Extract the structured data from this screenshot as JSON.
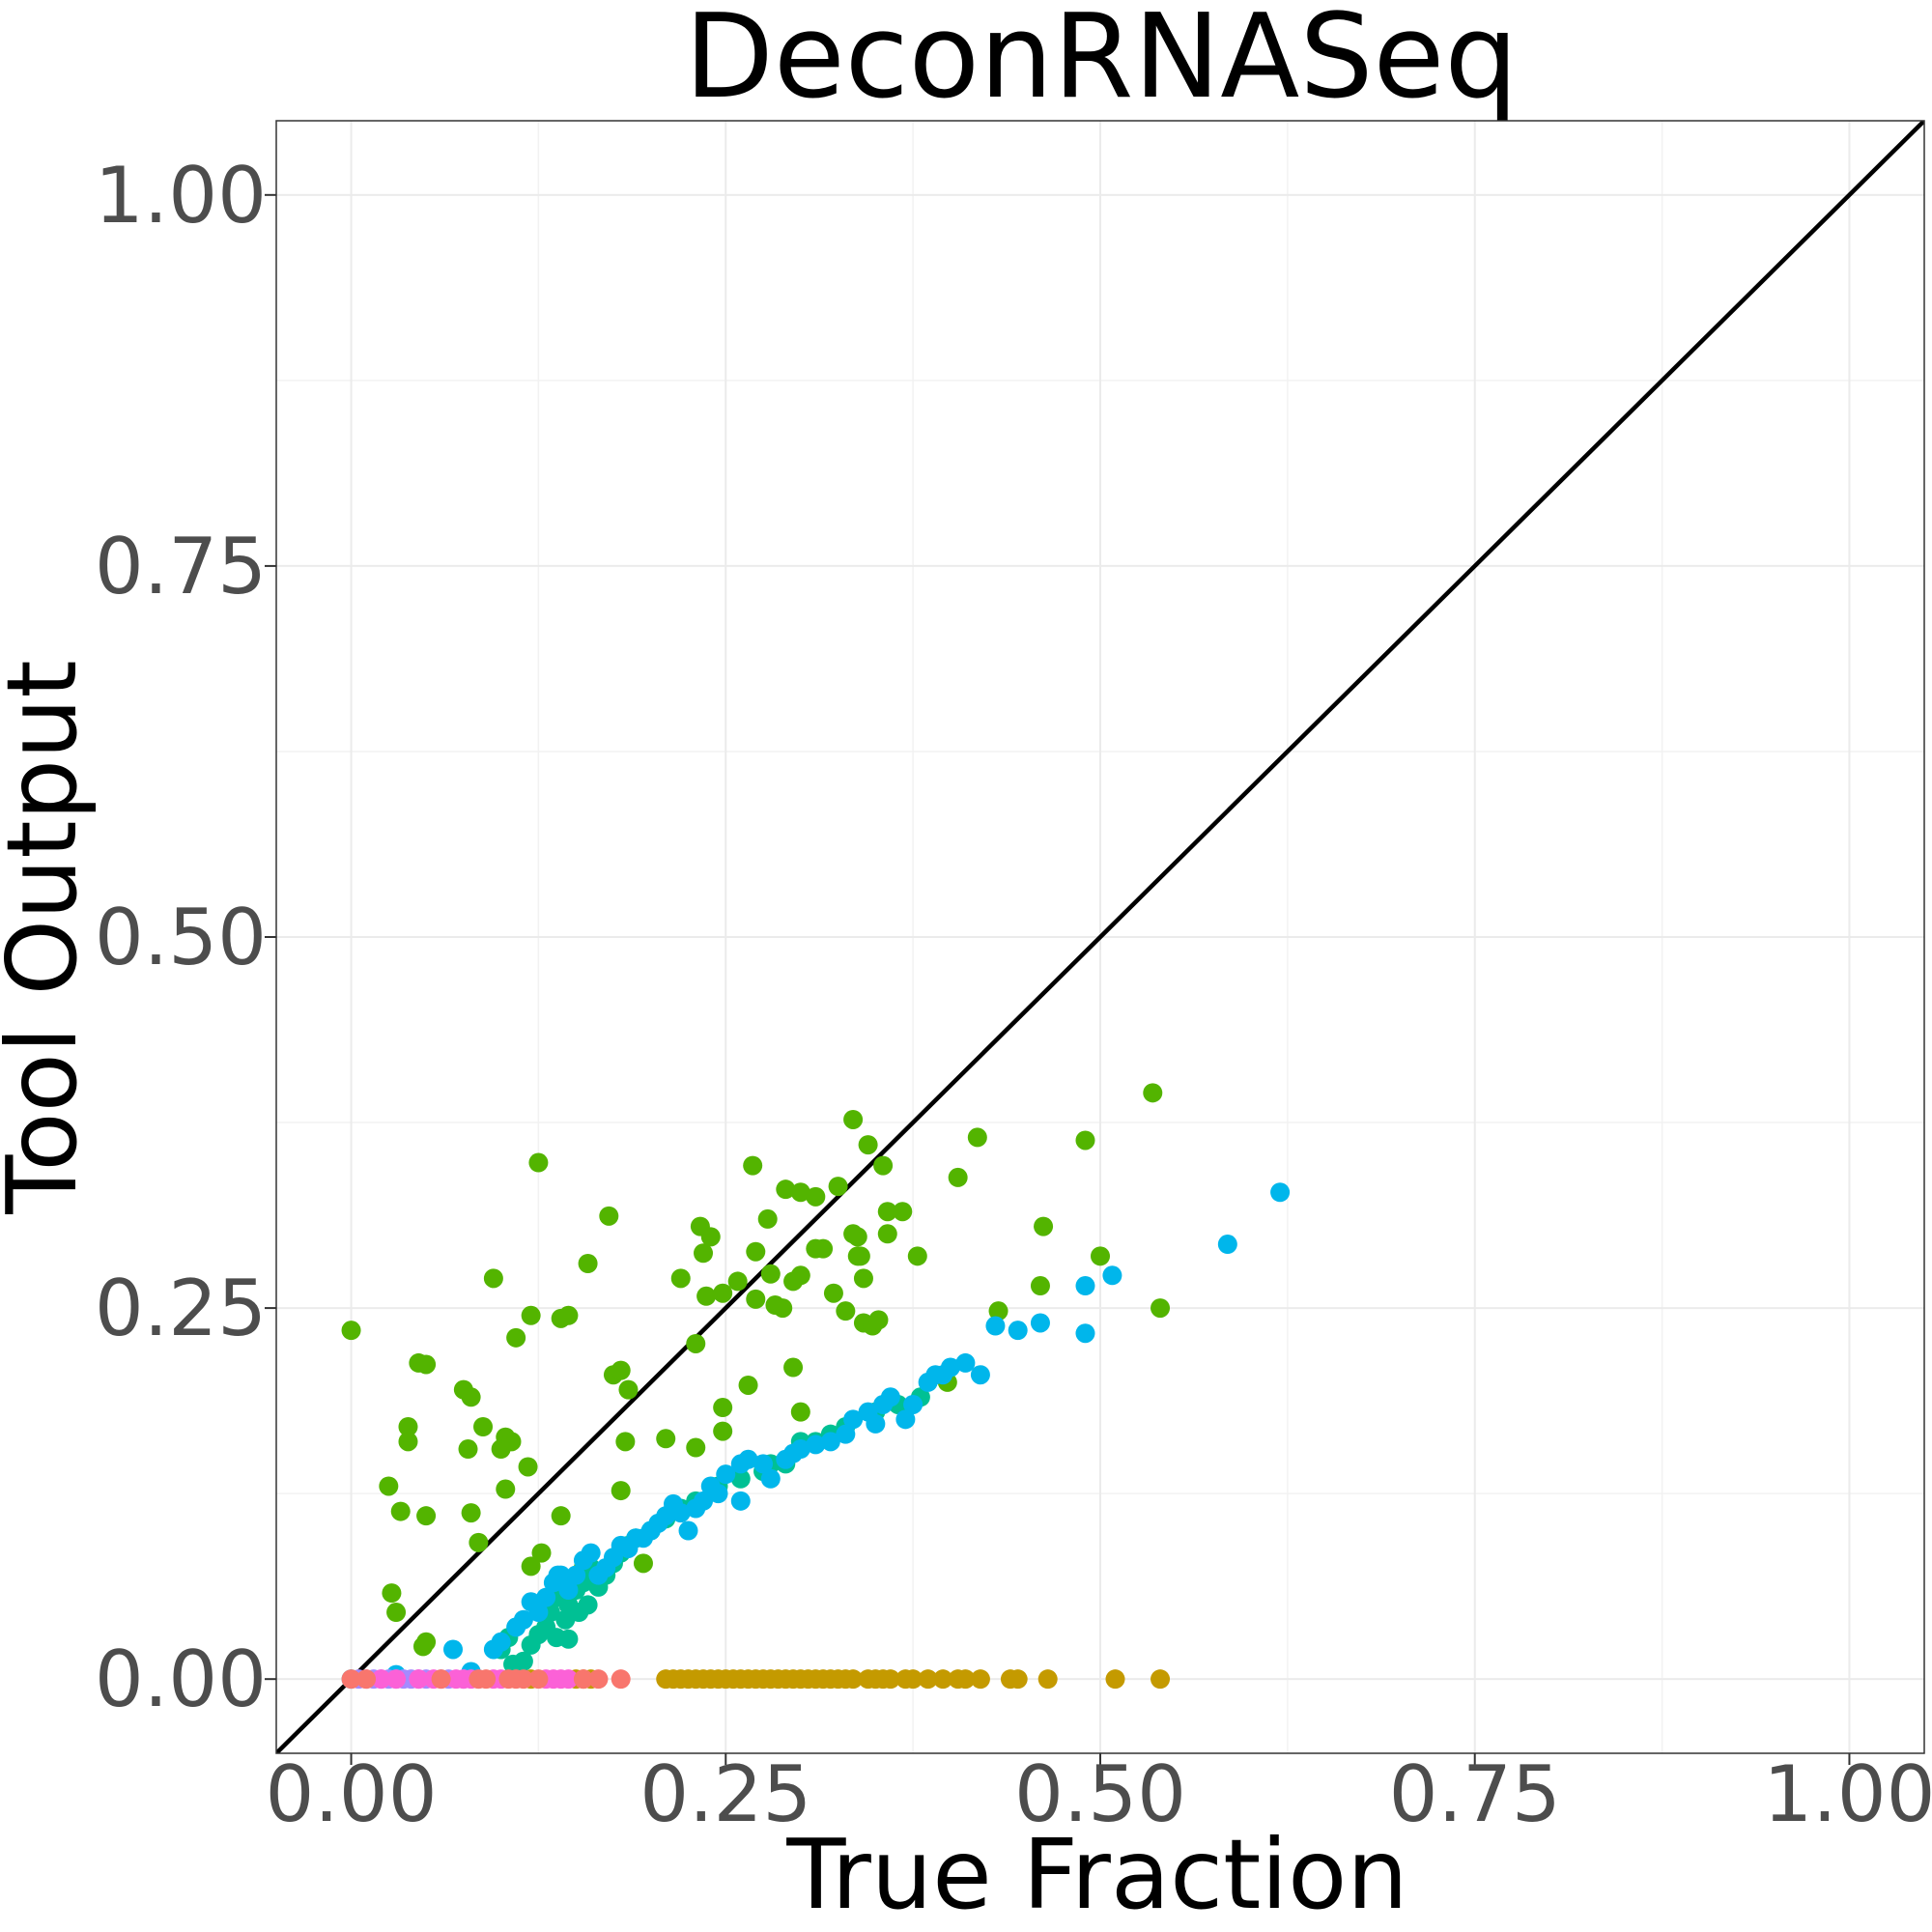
{
  "chart_data": {
    "type": "scatter",
    "title": "DeconRNASeq",
    "xlabel": "True Fraction",
    "ylabel": "Tool Output",
    "xlim": [
      -0.05,
      1.05
    ],
    "ylim": [
      -0.05,
      1.05
    ],
    "xticks": [
      0,
      0.25,
      0.5,
      0.75,
      1
    ],
    "yticks": [
      0,
      0.25,
      0.5,
      0.75,
      1
    ],
    "xtick_labels": [
      "0.00",
      "0.25",
      "0.50",
      "0.75",
      "1.00"
    ],
    "ytick_labels": [
      "0.00",
      "0.25",
      "0.50",
      "0.75",
      "1.00"
    ],
    "grid": true,
    "legend": "none",
    "reference_line": "y = x",
    "series": [
      {
        "color": "#53B400",
        "points": [
          [
            0.0,
            0.235
          ],
          [
            0.025,
            0.13
          ],
          [
            0.027,
            0.058
          ],
          [
            0.03,
            0.045
          ],
          [
            0.033,
            0.113
          ],
          [
            0.038,
            0.17
          ],
          [
            0.038,
            0.16
          ],
          [
            0.045,
            0.213
          ],
          [
            0.05,
            0.212
          ],
          [
            0.05,
            0.11
          ],
          [
            0.048,
            0.022
          ],
          [
            0.05,
            0.025
          ],
          [
            0.075,
            0.195
          ],
          [
            0.078,
            0.155
          ],
          [
            0.08,
            0.19
          ],
          [
            0.08,
            0.112
          ],
          [
            0.085,
            0.092
          ],
          [
            0.088,
            0.17
          ],
          [
            0.095,
            0.27
          ],
          [
            0.1,
            0.155
          ],
          [
            0.103,
            0.163
          ],
          [
            0.103,
            0.128
          ],
          [
            0.107,
            0.16
          ],
          [
            0.11,
            0.23
          ],
          [
            0.118,
            0.143
          ],
          [
            0.12,
            0.245
          ],
          [
            0.12,
            0.076
          ],
          [
            0.125,
            0.348
          ],
          [
            0.127,
            0.085
          ],
          [
            0.14,
            0.243
          ],
          [
            0.14,
            0.11
          ],
          [
            0.145,
            0.245
          ],
          [
            0.155,
            0.075
          ],
          [
            0.158,
            0.28
          ],
          [
            0.172,
            0.312
          ],
          [
            0.175,
            0.205
          ],
          [
            0.18,
            0.208
          ],
          [
            0.183,
            0.16
          ],
          [
            0.185,
            0.195
          ],
          [
            0.18,
            0.127
          ],
          [
            0.195,
            0.078
          ],
          [
            0.21,
            0.162
          ],
          [
            0.22,
            0.27
          ],
          [
            0.23,
            0.226
          ],
          [
            0.23,
            0.156
          ],
          [
            0.233,
            0.305
          ],
          [
            0.235,
            0.287
          ],
          [
            0.237,
            0.258
          ],
          [
            0.24,
            0.298
          ],
          [
            0.248,
            0.26
          ],
          [
            0.248,
            0.183
          ],
          [
            0.248,
            0.167
          ],
          [
            0.258,
            0.268
          ],
          [
            0.265,
            0.198
          ],
          [
            0.268,
            0.346
          ],
          [
            0.27,
            0.256
          ],
          [
            0.27,
            0.288
          ],
          [
            0.278,
            0.31
          ],
          [
            0.28,
            0.273
          ],
          [
            0.283,
            0.252
          ],
          [
            0.288,
            0.25
          ],
          [
            0.29,
            0.33
          ],
          [
            0.295,
            0.21
          ],
          [
            0.295,
            0.268
          ],
          [
            0.3,
            0.272
          ],
          [
            0.3,
            0.328
          ],
          [
            0.3,
            0.18
          ],
          [
            0.31,
            0.29
          ],
          [
            0.31,
            0.325
          ],
          [
            0.315,
            0.29
          ],
          [
            0.322,
            0.26
          ],
          [
            0.325,
            0.332
          ],
          [
            0.33,
            0.248
          ],
          [
            0.335,
            0.377
          ],
          [
            0.335,
            0.3
          ],
          [
            0.338,
            0.285
          ],
          [
            0.338,
            0.298
          ],
          [
            0.34,
            0.285
          ],
          [
            0.342,
            0.24
          ],
          [
            0.342,
            0.27
          ],
          [
            0.345,
            0.36
          ],
          [
            0.348,
            0.238
          ],
          [
            0.352,
            0.242
          ],
          [
            0.355,
            0.346
          ],
          [
            0.358,
            0.315
          ],
          [
            0.358,
            0.3
          ],
          [
            0.368,
            0.315
          ],
          [
            0.378,
            0.285
          ],
          [
            0.398,
            0.2
          ],
          [
            0.405,
            0.338
          ],
          [
            0.418,
            0.365
          ],
          [
            0.432,
            0.248
          ],
          [
            0.46,
            0.265
          ],
          [
            0.462,
            0.305
          ],
          [
            0.49,
            0.363
          ],
          [
            0.5,
            0.285
          ],
          [
            0.535,
            0.395
          ],
          [
            0.54,
            0.25
          ]
        ]
      },
      {
        "color": "#00C094",
        "points": [
          [
            0.1,
            0.02
          ],
          [
            0.105,
            0.028
          ],
          [
            0.108,
            0.01
          ],
          [
            0.11,
            0.005
          ],
          [
            0.115,
            0.012
          ],
          [
            0.12,
            0.023
          ],
          [
            0.125,
            0.03
          ],
          [
            0.13,
            0.035
          ],
          [
            0.133,
            0.045
          ],
          [
            0.137,
            0.028
          ],
          [
            0.14,
            0.055
          ],
          [
            0.143,
            0.04
          ],
          [
            0.145,
            0.05
          ],
          [
            0.145,
            0.027
          ],
          [
            0.15,
            0.06
          ],
          [
            0.152,
            0.045
          ],
          [
            0.155,
            0.065
          ],
          [
            0.158,
            0.05
          ],
          [
            0.16,
            0.075
          ],
          [
            0.165,
            0.062
          ],
          [
            0.17,
            0.07
          ],
          [
            0.175,
            0.078
          ],
          [
            0.18,
            0.085
          ],
          [
            0.185,
            0.09
          ],
          [
            0.19,
            0.095
          ],
          [
            0.2,
            0.1
          ],
          [
            0.21,
            0.108
          ],
          [
            0.22,
            0.115
          ],
          [
            0.23,
            0.12
          ],
          [
            0.245,
            0.13
          ],
          [
            0.26,
            0.135
          ],
          [
            0.275,
            0.14
          ],
          [
            0.28,
            0.145
          ],
          [
            0.29,
            0.145
          ],
          [
            0.3,
            0.16
          ],
          [
            0.31,
            0.16
          ],
          [
            0.32,
            0.165
          ],
          [
            0.33,
            0.17
          ],
          [
            0.35,
            0.18
          ],
          [
            0.365,
            0.185
          ],
          [
            0.38,
            0.19
          ]
        ]
      },
      {
        "color": "#00B6EB",
        "points": [
          [
            0.0,
            0.0
          ],
          [
            0.03,
            0.003
          ],
          [
            0.068,
            0.02
          ],
          [
            0.08,
            0.005
          ],
          [
            0.095,
            0.02
          ],
          [
            0.1,
            0.025
          ],
          [
            0.11,
            0.035
          ],
          [
            0.115,
            0.04
          ],
          [
            0.12,
            0.052
          ],
          [
            0.125,
            0.045
          ],
          [
            0.13,
            0.055
          ],
          [
            0.135,
            0.065
          ],
          [
            0.138,
            0.07
          ],
          [
            0.14,
            0.07
          ],
          [
            0.145,
            0.06
          ],
          [
            0.15,
            0.07
          ],
          [
            0.155,
            0.08
          ],
          [
            0.16,
            0.085
          ],
          [
            0.165,
            0.07
          ],
          [
            0.17,
            0.075
          ],
          [
            0.175,
            0.082
          ],
          [
            0.18,
            0.09
          ],
          [
            0.185,
            0.088
          ],
          [
            0.19,
            0.095
          ],
          [
            0.195,
            0.095
          ],
          [
            0.2,
            0.1
          ],
          [
            0.205,
            0.105
          ],
          [
            0.21,
            0.11
          ],
          [
            0.215,
            0.118
          ],
          [
            0.22,
            0.112
          ],
          [
            0.225,
            0.1
          ],
          [
            0.23,
            0.115
          ],
          [
            0.235,
            0.12
          ],
          [
            0.24,
            0.13
          ],
          [
            0.245,
            0.125
          ],
          [
            0.25,
            0.138
          ],
          [
            0.26,
            0.12
          ],
          [
            0.26,
            0.145
          ],
          [
            0.265,
            0.148
          ],
          [
            0.275,
            0.145
          ],
          [
            0.28,
            0.135
          ],
          [
            0.29,
            0.148
          ],
          [
            0.295,
            0.152
          ],
          [
            0.3,
            0.155
          ],
          [
            0.31,
            0.158
          ],
          [
            0.32,
            0.16
          ],
          [
            0.33,
            0.165
          ],
          [
            0.335,
            0.175
          ],
          [
            0.345,
            0.18
          ],
          [
            0.35,
            0.172
          ],
          [
            0.355,
            0.185
          ],
          [
            0.36,
            0.19
          ],
          [
            0.37,
            0.175
          ],
          [
            0.375,
            0.185
          ],
          [
            0.385,
            0.2
          ],
          [
            0.39,
            0.205
          ],
          [
            0.395,
            0.205
          ],
          [
            0.4,
            0.21
          ],
          [
            0.41,
            0.213
          ],
          [
            0.42,
            0.205
          ],
          [
            0.43,
            0.238
          ],
          [
            0.445,
            0.235
          ],
          [
            0.46,
            0.24
          ],
          [
            0.49,
            0.265
          ],
          [
            0.49,
            0.233
          ],
          [
            0.508,
            0.272
          ],
          [
            0.585,
            0.293
          ],
          [
            0.62,
            0.328
          ]
        ]
      },
      {
        "color": "#C49A00",
        "points": [
          [
            0.12,
            0.0
          ],
          [
            0.15,
            0.0
          ],
          [
            0.155,
            0.0
          ],
          [
            0.16,
            0.0
          ],
          [
            0.21,
            0.0
          ],
          [
            0.215,
            0.0
          ],
          [
            0.22,
            0.0
          ],
          [
            0.225,
            0.0
          ],
          [
            0.23,
            0.0
          ],
          [
            0.235,
            0.0
          ],
          [
            0.24,
            0.0
          ],
          [
            0.245,
            0.0
          ],
          [
            0.25,
            0.0
          ],
          [
            0.255,
            0.0
          ],
          [
            0.26,
            0.0
          ],
          [
            0.265,
            0.0
          ],
          [
            0.27,
            0.0
          ],
          [
            0.275,
            0.0
          ],
          [
            0.28,
            0.0
          ],
          [
            0.285,
            0.0
          ],
          [
            0.29,
            0.0
          ],
          [
            0.295,
            0.0
          ],
          [
            0.3,
            0.0
          ],
          [
            0.305,
            0.0
          ],
          [
            0.31,
            0.0
          ],
          [
            0.315,
            0.0
          ],
          [
            0.32,
            0.0
          ],
          [
            0.325,
            0.0
          ],
          [
            0.33,
            0.0
          ],
          [
            0.335,
            0.0
          ],
          [
            0.345,
            0.0
          ],
          [
            0.35,
            0.0
          ],
          [
            0.355,
            0.0
          ],
          [
            0.36,
            0.0
          ],
          [
            0.37,
            0.0
          ],
          [
            0.375,
            0.0
          ],
          [
            0.385,
            0.0
          ],
          [
            0.395,
            0.0
          ],
          [
            0.405,
            0.0
          ],
          [
            0.41,
            0.0
          ],
          [
            0.42,
            0.0
          ],
          [
            0.44,
            0.0
          ],
          [
            0.445,
            0.0
          ],
          [
            0.465,
            0.0
          ],
          [
            0.51,
            0.0
          ],
          [
            0.54,
            0.0
          ]
        ]
      },
      {
        "color": "#A58AFF",
        "points": [
          [
            0.005,
            0.0
          ],
          [
            0.01,
            0.0
          ],
          [
            0.015,
            0.0
          ],
          [
            0.02,
            0.0
          ],
          [
            0.025,
            0.0
          ],
          [
            0.03,
            0.0
          ],
          [
            0.035,
            0.0
          ],
          [
            0.04,
            0.0
          ],
          [
            0.045,
            0.0
          ],
          [
            0.05,
            0.0
          ],
          [
            0.06,
            0.0
          ],
          [
            0.065,
            0.0
          ],
          [
            0.075,
            0.0
          ],
          [
            0.085,
            0.0
          ]
        ]
      },
      {
        "color": "#FB61D7",
        "points": [
          [
            0.02,
            0.0
          ],
          [
            0.03,
            0.0
          ],
          [
            0.045,
            0.0
          ],
          [
            0.055,
            0.0
          ],
          [
            0.07,
            0.0
          ],
          [
            0.075,
            0.0
          ],
          [
            0.08,
            0.0
          ],
          [
            0.095,
            0.0
          ],
          [
            0.1,
            0.0
          ],
          [
            0.13,
            0.0
          ],
          [
            0.135,
            0.0
          ],
          [
            0.14,
            0.0
          ],
          [
            0.145,
            0.0
          ]
        ]
      },
      {
        "color": "#F8766D",
        "points": [
          [
            0.0,
            0.0
          ],
          [
            0.01,
            0.0
          ],
          [
            0.06,
            0.0
          ],
          [
            0.085,
            0.0
          ],
          [
            0.09,
            0.0
          ],
          [
            0.105,
            0.0
          ],
          [
            0.11,
            0.0
          ],
          [
            0.115,
            0.0
          ],
          [
            0.125,
            0.0
          ],
          [
            0.155,
            0.0
          ],
          [
            0.165,
            0.0
          ],
          [
            0.18,
            0.0
          ]
        ]
      }
    ]
  }
}
